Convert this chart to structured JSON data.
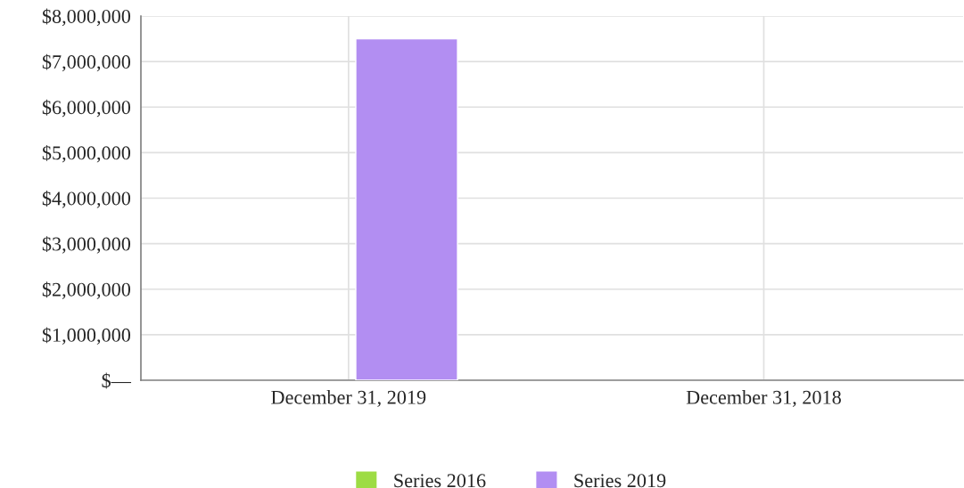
{
  "chart_data": {
    "type": "bar",
    "categories": [
      "December 31, 2019",
      "December 31, 2018"
    ],
    "series": [
      {
        "name": "Series 2016",
        "color": "#9ddc44",
        "values": [
          null,
          null
        ]
      },
      {
        "name": "Series 2019",
        "color": "#b28ef2",
        "values": [
          7500000,
          null
        ]
      }
    ],
    "ylim": [
      0,
      8000000
    ],
    "yticks": [
      {
        "value": 0,
        "label": "$—"
      },
      {
        "value": 1000000,
        "label": "$1,000,000"
      },
      {
        "value": 2000000,
        "label": "$2,000,000"
      },
      {
        "value": 3000000,
        "label": "$3,000,000"
      },
      {
        "value": 4000000,
        "label": "$4,000,000"
      },
      {
        "value": 5000000,
        "label": "$5,000,000"
      },
      {
        "value": 6000000,
        "label": "$6,000,000"
      },
      {
        "value": 7000000,
        "label": "$7,000,000"
      },
      {
        "value": 8000000,
        "label": "$8,000,000"
      }
    ],
    "grid": true,
    "legend": "bottom"
  }
}
